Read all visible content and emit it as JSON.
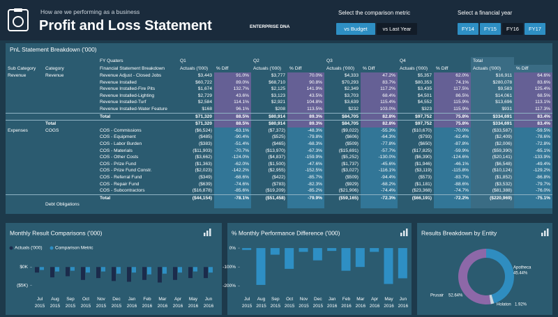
{
  "header": {
    "subtitle": "How are we performing as a business",
    "title": "Profit and Loss Statement",
    "logo": "ENTERPRISE DNA",
    "metric_label": "Select the comparison metric",
    "metric_buttons": [
      "vs Budget",
      "vs Last Year"
    ],
    "year_label": "Select a financial year",
    "year_buttons": [
      "FY14",
      "FY15",
      "FY16",
      "FY17"
    ]
  },
  "table": {
    "title": "PnL Statement Breakdown ('000)",
    "group_header": {
      "fy": "FY Quaters",
      "q1": "Q1",
      "q2": "Q2",
      "q3": "Q3",
      "q4": "Q4",
      "total": "Total"
    },
    "columns": [
      "Sub Category",
      "Category",
      "Financial Statement Breakdown",
      "Actuals ('000)",
      "% Diff",
      "Actuals ('000)",
      "% Diff",
      "Actuals ('000)",
      "% Diff",
      "Actuals ('000)",
      "% Diff",
      "Actuals ('000)",
      "% Diff"
    ],
    "rows": [
      [
        "Revenue",
        "Revenue",
        "Revenue Adjust - Closed Jobs",
        "$3,443",
        "91.0%",
        "$3,777",
        "70.0%",
        "$4,333",
        "47.2%",
        "$5,357",
        "62.0%",
        "$16,911",
        "64.6%"
      ],
      [
        null,
        null,
        "Revenue Installed",
        "$60,722",
        "89.0%",
        "$68,710",
        "90.8%",
        "$70,293",
        "83.7%",
        "$80,353",
        "74.1%",
        "$280,078",
        "83.6%"
      ],
      [
        null,
        null,
        "Revenue Installed-Fire Pits",
        "$1,674",
        "132.7%",
        "$2,125",
        "141.9%",
        "$2,349",
        "117.2%",
        "$3,435",
        "117.5%",
        "$9,583",
        "125.4%"
      ],
      [
        null,
        null,
        "Revenue Installed-Lighting",
        "$2,729",
        "43.6%",
        "$3,123",
        "43.5%",
        "$3,703",
        "68.4%",
        "$4,501",
        "86.5%",
        "$14,061",
        "68.5%"
      ],
      [
        null,
        null,
        "Revenue Installed-Turf",
        "$2,584",
        "114.1%",
        "$2,921",
        "104.8%",
        "$3,639",
        "115.4%",
        "$4,552",
        "115.9%",
        "$13,696",
        "113.1%"
      ],
      [
        null,
        null,
        "Revenue Installed-Water Feature",
        "$168",
        "96.1%",
        "$208",
        "113.5%",
        "$232",
        "103.0%",
        "$323",
        "115.9%",
        "$931",
        "117.3%"
      ],
      [
        null,
        null,
        "Total",
        "$71,320",
        "88.5%",
        "$80,914",
        "89.3%",
        "$84,705",
        "82.8%",
        "$97,752",
        "75.8%",
        "$334,691",
        "83.4%"
      ],
      [
        null,
        "Total",
        null,
        "$71,320",
        "88.5%",
        "$80,914",
        "89.3%",
        "$84,705",
        "82.8%",
        "$97,752",
        "75.8%",
        "$334,691",
        "83.4%"
      ],
      [
        "Expenses",
        "COGS",
        "COS - Commissions",
        "($6,524)",
        "-63.1%",
        "($7,372)",
        "-48.3%",
        "($9,022)",
        "-55.3%",
        "($10,670)",
        "-70.0%",
        "($33,587)",
        "-59.5%"
      ],
      [
        null,
        null,
        "COS - Equipment",
        "($485)",
        "-90.4%",
        "($525)",
        "-79.8%",
        "($606)",
        "-64.3%",
        "($793)",
        "-62.4%",
        "($2,409)",
        "-78.6%"
      ],
      [
        null,
        null,
        "COS - Labor Burden",
        "($383)",
        "-51.4%",
        "($465)",
        "-68.3%",
        "($509)",
        "-77.8%",
        "($650)",
        "-87.8%",
        "($2,006)",
        "-72.8%"
      ],
      [
        null,
        null,
        "COS - Materials",
        "($11,903)",
        "-70.7%",
        "($13,970)",
        "-67.3%",
        "($15,691)",
        "-57.7%",
        "($17,825)",
        "-59.9%",
        "($59,390)",
        "-65.1%"
      ],
      [
        null,
        null,
        "COS - Other Costs",
        "($3,662)",
        "-124.0%",
        "($4,837)",
        "-159.9%",
        "($5,252)",
        "-130.0%",
        "($6,390)",
        "-124.6%",
        "($20,141)",
        "-133.9%"
      ],
      [
        null,
        null,
        "COS - Prize Fund",
        "($1,363)",
        "-62.0%",
        "($1,500)",
        "-47.6%",
        "($1,737)",
        "-45.6%",
        "($1,946)",
        "-46.1%",
        "($6,548)",
        "-49.4%"
      ],
      [
        null,
        null,
        "COS - Prize Fund Constr.",
        "($2,023)",
        "-142.2%",
        "($2,955)",
        "-152.5%",
        "($3,027)",
        "-116.1%",
        "($3,119)",
        "-115.8%",
        "($10,124)",
        "-129.2%"
      ],
      [
        null,
        null,
        "COS - Referral Fund",
        "($349)",
        "-68.6%",
        "($422)",
        "-85.7%",
        "($509)",
        "-94.4%",
        "($573)",
        "-83.7%",
        "($1,852)",
        "-86.8%"
      ],
      [
        null,
        null,
        "COS - Repair Fund",
        "($639)",
        "-74.6%",
        "($783)",
        "-82.3%",
        "($929)",
        "-68.2%",
        "($1,181)",
        "-88.6%",
        "($3,532)",
        "-79.7%"
      ],
      [
        null,
        null,
        "COS - Subcontractors",
        "($16,878)",
        "-85.6%",
        "($19,209)",
        "-85.2%",
        "($21,906)",
        "-74.4%",
        "($23,368)",
        "-74.7%",
        "($81,388)",
        "-76.0%"
      ],
      [
        null,
        null,
        "Total",
        "($44,154)",
        "-78.1%",
        "($51,458)",
        "-79.9%",
        "($59,165)",
        "-72.3%",
        "($66,191)",
        "-72.2%",
        "($220,969)",
        "-75.1%"
      ],
      [
        null,
        "Debt Obligations",
        null,
        null,
        null,
        null,
        null,
        null,
        null,
        null,
        null,
        null,
        null
      ]
    ]
  },
  "chart_data": [
    {
      "type": "bar",
      "title": "Monthly Result Comparisons ('000)",
      "categories": [
        "Jul 2015",
        "Aug 2015",
        "Sep 2015",
        "Oct 2015",
        "Nov 2015",
        "Dec 2015",
        "Jan 2016",
        "Feb 2016",
        "Mar 2016",
        "Apr 2016",
        "May 2016",
        "Jun 2016"
      ],
      "series": [
        {
          "name": "Actuals ('000)",
          "color": "#1b2b4b",
          "values": [
            -1.5,
            -2.8,
            -2.5,
            -3.5,
            -3.0,
            -3.8,
            -4.0,
            -3.5,
            -4.2,
            -3.5,
            -3.0,
            -3.0
          ]
        },
        {
          "name": "Comparison Metric",
          "color": "#2e8fc4",
          "values": [
            -0.8,
            -1.2,
            -1.0,
            -1.5,
            -1.2,
            -1.8,
            -1.5,
            -2.0,
            -1.8,
            -1.5,
            -1.2,
            -1.5
          ]
        }
      ],
      "ylim": [
        -6,
        1
      ],
      "yticks": [
        {
          "value": 0,
          "label": "$0K"
        },
        {
          "value": -5,
          "label": "($5K)"
        }
      ]
    },
    {
      "type": "bar",
      "title": "% Monthly Performance Difference ('000)",
      "categories": [
        "Jul 2015",
        "Aug 2015",
        "Sep 2015",
        "Oct 2015",
        "Nov 2015",
        "Dec 2015",
        "Jan 2016",
        "Feb 2016",
        "Mar 2016",
        "Apr 2016",
        "May 2016",
        "Jun 2016"
      ],
      "values": [
        -10,
        -195,
        -35,
        -110,
        -20,
        -65,
        -15,
        -120,
        -100,
        -20,
        -190,
        -160
      ],
      "color": "#2e8fc4",
      "ylim": [
        -210,
        15
      ],
      "yticks": [
        {
          "value": 0,
          "label": "0%"
        },
        {
          "value": -100,
          "label": "-100%"
        },
        {
          "value": -200,
          "label": "-200%"
        }
      ]
    },
    {
      "type": "pie",
      "title": "Results Breakdown by Entity",
      "categories": [
        "Apotheca",
        "Holaton",
        "Prusair"
      ],
      "values": [
        45.44,
        1.92,
        52.64
      ],
      "value_labels": [
        "45.44%",
        "1.92%",
        "52.64%"
      ],
      "colors": [
        "#2f8dc0",
        "#c9d6e0",
        "#8d68a8"
      ]
    }
  ]
}
